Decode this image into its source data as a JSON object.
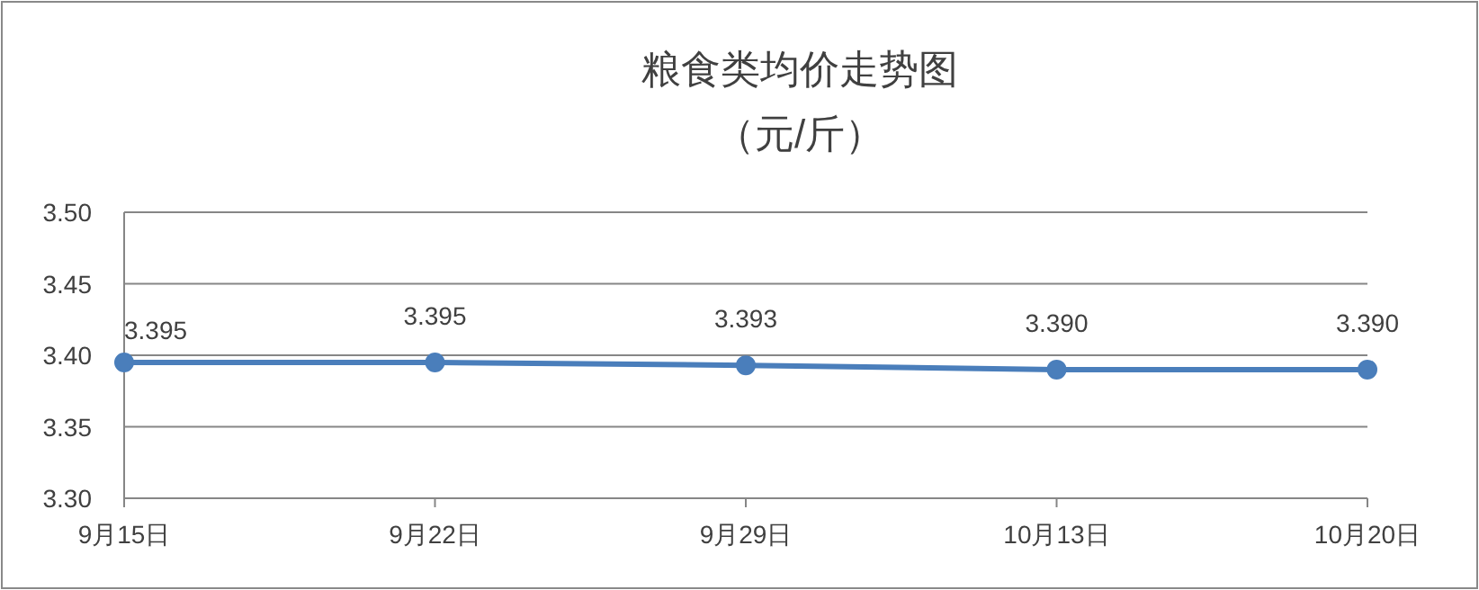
{
  "chart_data": {
    "type": "line",
    "title": "粮食类均价走势图",
    "subtitle": "（元/斤）",
    "categories": [
      "9月15日",
      "9月22日",
      "9月29日",
      "10月13日",
      "10月20日"
    ],
    "series": [
      {
        "color": "#4a7ebb",
        "values": [
          3.395,
          3.395,
          3.393,
          3.39,
          3.39
        ],
        "value_labels": [
          "3.395",
          "3.395",
          "3.393",
          "3.390",
          "3.390"
        ]
      }
    ],
    "ylim": [
      3.3,
      3.5
    ],
    "yticks": [
      {
        "value": 3.3,
        "label": "3.30"
      },
      3.35,
      {
        "value": 3.4,
        "label": "3.40"
      },
      3.45,
      {
        "value": 3.5,
        "label": "3.50"
      }
    ],
    "grid": "y",
    "marker": "circle",
    "line_style": "solid"
  }
}
